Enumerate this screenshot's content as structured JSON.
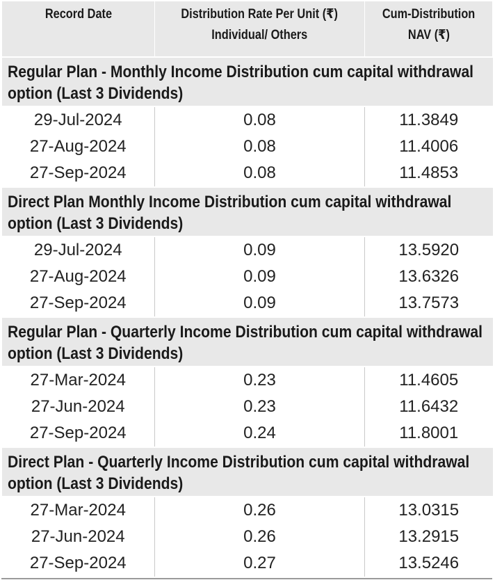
{
  "headers": {
    "record_date": "Record Date",
    "distribution_rate_line1": "Distribution Rate Per Unit  (₹)",
    "distribution_rate_line2": "Individual/ Others",
    "cum_nav_line1": "Cum-Distribution",
    "cum_nav_line2": "NAV (₹)"
  },
  "sections": [
    {
      "title": "Regular Plan - Monthly Income Distribution cum capital withdrawal option (Last 3 Dividends)",
      "rows": [
        {
          "date": "29-Jul-2024",
          "rate": "0.08",
          "nav": "11.3849"
        },
        {
          "date": "27-Aug-2024",
          "rate": "0.08",
          "nav": "11.4006"
        },
        {
          "date": "27-Sep-2024",
          "rate": "0.08",
          "nav": "11.4853"
        }
      ]
    },
    {
      "title": "Direct Plan Monthly Income Distribution cum capital withdrawal option (Last 3 Dividends)",
      "rows": [
        {
          "date": "29-Jul-2024",
          "rate": "0.09",
          "nav": "13.5920"
        },
        {
          "date": "27-Aug-2024",
          "rate": "0.09",
          "nav": "13.6326"
        },
        {
          "date": "27-Sep-2024",
          "rate": "0.09",
          "nav": "13.7573"
        }
      ]
    },
    {
      "title": "Regular Plan - Quarterly Income Distribution cum capital withdrawal option (Last 3 Dividends)",
      "rows": [
        {
          "date": "27-Mar-2024",
          "rate": "0.23",
          "nav": "11.4605"
        },
        {
          "date": "27-Jun-2024",
          "rate": "0.23",
          "nav": "11.6432"
        },
        {
          "date": "27-Sep-2024",
          "rate": "0.24",
          "nav": "11.8001"
        }
      ]
    },
    {
      "title": "Direct Plan - Quarterly Income Distribution cum capital withdrawal option (Last 3 Dividends)",
      "rows": [
        {
          "date": "27-Mar-2024",
          "rate": "0.26",
          "nav": "13.0315"
        },
        {
          "date": "27-Jun-2024",
          "rate": "0.26",
          "nav": "13.2915"
        },
        {
          "date": "27-Sep-2024",
          "rate": "0.27",
          "nav": "13.5246"
        }
      ]
    }
  ]
}
